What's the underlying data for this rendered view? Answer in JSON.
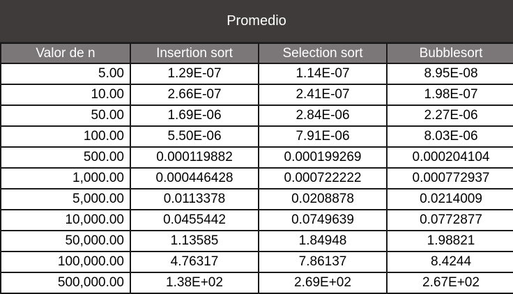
{
  "title": "Promedio",
  "columns": [
    "Valor de n",
    "Insertion sort",
    "Selection sort",
    "Bubblesort"
  ],
  "rows": [
    [
      "5.00",
      "1.29E-07",
      "1.14E-07",
      "8.95E-08"
    ],
    [
      "10.00",
      "2.66E-07",
      "2.41E-07",
      "1.98E-07"
    ],
    [
      "50.00",
      "1.69E-06",
      "2.84E-06",
      "2.27E-06"
    ],
    [
      "100.00",
      "5.50E-06",
      "7.91E-06",
      "8.03E-06"
    ],
    [
      "500.00",
      "0.000119882",
      "0.000199269",
      "0.000204104"
    ],
    [
      "1,000.00",
      "0.000446428",
      "0.000722222",
      "0.000772937"
    ],
    [
      "5,000.00",
      "0.0113378",
      "0.0208878",
      "0.0214009"
    ],
    [
      "10,000.00",
      "0.0455442",
      "0.0749639",
      "0.0772877"
    ],
    [
      "50,000.00",
      "1.13585",
      "1.84948",
      "1.98821"
    ],
    [
      "100,000.00",
      "4.76317",
      "7.86137",
      "8.4244"
    ],
    [
      "500,000.00",
      "1.38E+02",
      "2.69E+02",
      "2.67E+02"
    ]
  ]
}
